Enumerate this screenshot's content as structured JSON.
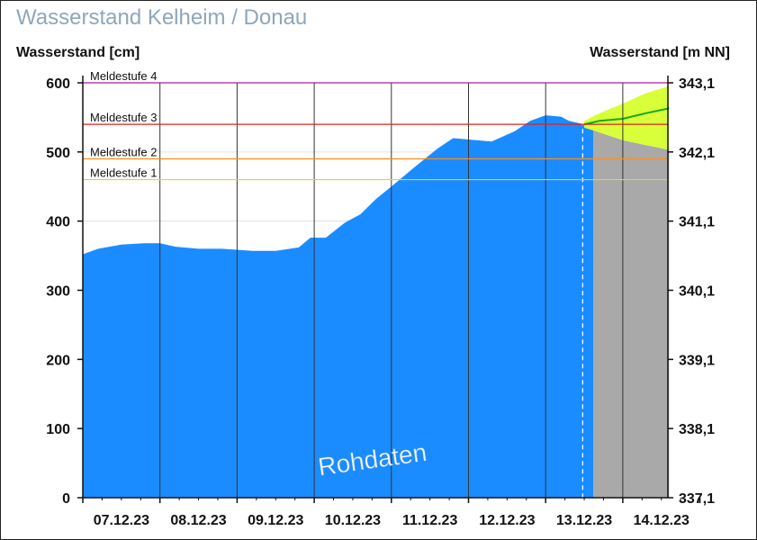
{
  "title": "Wasserstand Kelheim / Donau",
  "chart_data": {
    "type": "area",
    "ylabel_left": "Wasserstand [cm]",
    "ylabel_right": "Wasserstand [m NN]",
    "ylim": [
      0,
      600
    ],
    "y_ticks_left": [
      "0",
      "100",
      "200",
      "300",
      "400",
      "500",
      "600"
    ],
    "y_ticks_right": [
      "337,1",
      "338,1",
      "339,1",
      "340,1",
      "341,1",
      "342,1",
      "343,1"
    ],
    "x_ticks": [
      "07.12.23",
      "08.12.23",
      "09.12.23",
      "10.12.23",
      "11.12.23",
      "12.12.23",
      "13.12.23",
      "14.12.23"
    ],
    "measured": {
      "days": [
        0,
        0.2,
        0.5,
        0.8,
        1.0,
        1.2,
        1.5,
        1.8,
        2.2,
        2.5,
        2.8,
        2.95,
        3.15,
        3.4,
        3.6,
        3.8,
        4.0,
        4.3,
        4.6,
        4.8,
        5.0,
        5.3,
        5.6,
        5.8,
        6.0,
        6.2,
        6.3,
        6.5
      ],
      "values": [
        352,
        360,
        366,
        368,
        368,
        363,
        360,
        360,
        357,
        357,
        362,
        376,
        376,
        398,
        410,
        432,
        450,
        478,
        505,
        520,
        518,
        515,
        530,
        545,
        553,
        551,
        545,
        540
      ]
    },
    "forecast": {
      "days": [
        6.5,
        6.7,
        7.0,
        7.3,
        7.6
      ],
      "median": [
        540,
        545,
        548,
        556,
        563
      ],
      "upper": [
        545,
        556,
        570,
        585,
        595
      ],
      "lower": [
        535,
        528,
        517,
        510,
        503
      ]
    },
    "forecast_start_day": 6.62,
    "thresholds": [
      {
        "label": "Meldestufe 4",
        "value": 600,
        "color": "#a020a0"
      },
      {
        "label": "Meldestufe 3",
        "value": 540,
        "color": "#e02020"
      },
      {
        "label": "Meldestufe 2",
        "value": 490,
        "color": "#ff8c1a"
      },
      {
        "label": "Meldestufe 1",
        "value": 460,
        "color": "#f5c842"
      }
    ],
    "watermark": "Rohdaten",
    "colors": {
      "measured_fill": "#1a8cff",
      "forecast_bg": "#a9a9a9",
      "forecast_band": "#d8ff3a",
      "forecast_line": "#18a818"
    }
  }
}
